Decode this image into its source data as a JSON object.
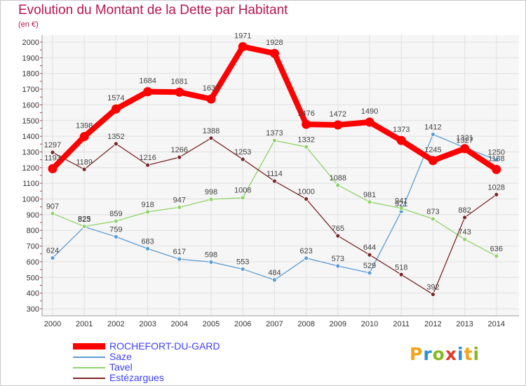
{
  "header": {
    "title": "Evolution du Montant de la Dette par Habitant",
    "subtitle": "(en €)"
  },
  "logo": {
    "text": "Proxiti",
    "colors": [
      "#f2a51a",
      "#2e8fd6",
      "#86b91f",
      "#e4382a",
      "#2e8fd6",
      "#f2a51a",
      "#86b91f"
    ]
  },
  "chart_data": {
    "type": "line",
    "title": "Evolution du Montant de la Dette par Habitant",
    "subtitle": "(en €)",
    "xlabel": "",
    "ylabel": "",
    "x": [
      "2000",
      "2001",
      "2002",
      "2003",
      "2004",
      "2005",
      "2006",
      "2007",
      "2008",
      "2009",
      "2010",
      "2011",
      "2012",
      "2013",
      "2014"
    ],
    "ylim": [
      300,
      2000
    ],
    "yticks": [
      300,
      400,
      500,
      600,
      700,
      800,
      900,
      1000,
      1100,
      1200,
      1300,
      1400,
      1500,
      1600,
      1700,
      1800,
      1900,
      2000
    ],
    "grid": true,
    "legend_position": "bottom-left",
    "series": [
      {
        "name": "Saze",
        "color": "#5b9bd5",
        "values": [
          624,
          823,
          759,
          683,
          617,
          598,
          553,
          484,
          623,
          573,
          529,
          921,
          1412,
          1327,
          1250
        ]
      },
      {
        "name": "Tavel",
        "color": "#8fd36a",
        "values": [
          907,
          825,
          859,
          918,
          947,
          998,
          1008,
          1373,
          1332,
          1088,
          981,
          941,
          873,
          743,
          636
        ]
      },
      {
        "name": "Estézargues",
        "color": "#7b2727",
        "values": [
          1297,
          1189,
          1352,
          1216,
          1266,
          1388,
          1253,
          1114,
          1000,
          765,
          644,
          518,
          392,
          882,
          1028
        ]
      },
      {
        "name": "ROCHEFORT-DU-GARD",
        "color": "#ff0000",
        "values": [
          1193,
          1398,
          1574,
          1684,
          1681,
          1637,
          1971,
          1928,
          1476,
          1472,
          1490,
          1373,
          1245,
          1321,
          1188
        ]
      }
    ]
  }
}
